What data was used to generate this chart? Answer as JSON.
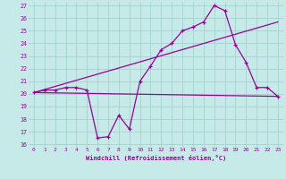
{
  "xlabel": "Windchill (Refroidissement éolien,°C)",
  "xlim": [
    -0.5,
    23.5
  ],
  "ylim": [
    15.8,
    27.3
  ],
  "yticks": [
    16,
    17,
    18,
    19,
    20,
    21,
    22,
    23,
    24,
    25,
    26,
    27
  ],
  "xticks": [
    0,
    1,
    2,
    3,
    4,
    5,
    6,
    7,
    8,
    9,
    10,
    11,
    12,
    13,
    14,
    15,
    16,
    17,
    18,
    19,
    20,
    21,
    22,
    23
  ],
  "bg_color": "#c5eae8",
  "line_color": "#990099",
  "grid_color": "#9ecece",
  "line1_x": [
    0,
    1,
    2,
    3,
    4,
    5,
    6,
    7,
    8,
    9,
    10,
    11,
    12,
    13,
    14,
    15,
    16,
    17,
    18,
    19,
    20,
    21,
    22,
    23
  ],
  "line1_y": [
    20.1,
    20.3,
    20.3,
    20.5,
    20.5,
    20.3,
    16.5,
    16.6,
    18.3,
    17.2,
    21.0,
    22.2,
    23.5,
    24.0,
    25.0,
    25.3,
    25.7,
    27.0,
    26.6,
    23.9,
    22.5,
    20.5,
    20.5,
    19.8
  ],
  "line2_x": [
    0,
    23
  ],
  "line2_y": [
    20.1,
    19.8
  ],
  "line3_x": [
    0,
    23
  ],
  "line3_y": [
    20.1,
    25.7
  ]
}
